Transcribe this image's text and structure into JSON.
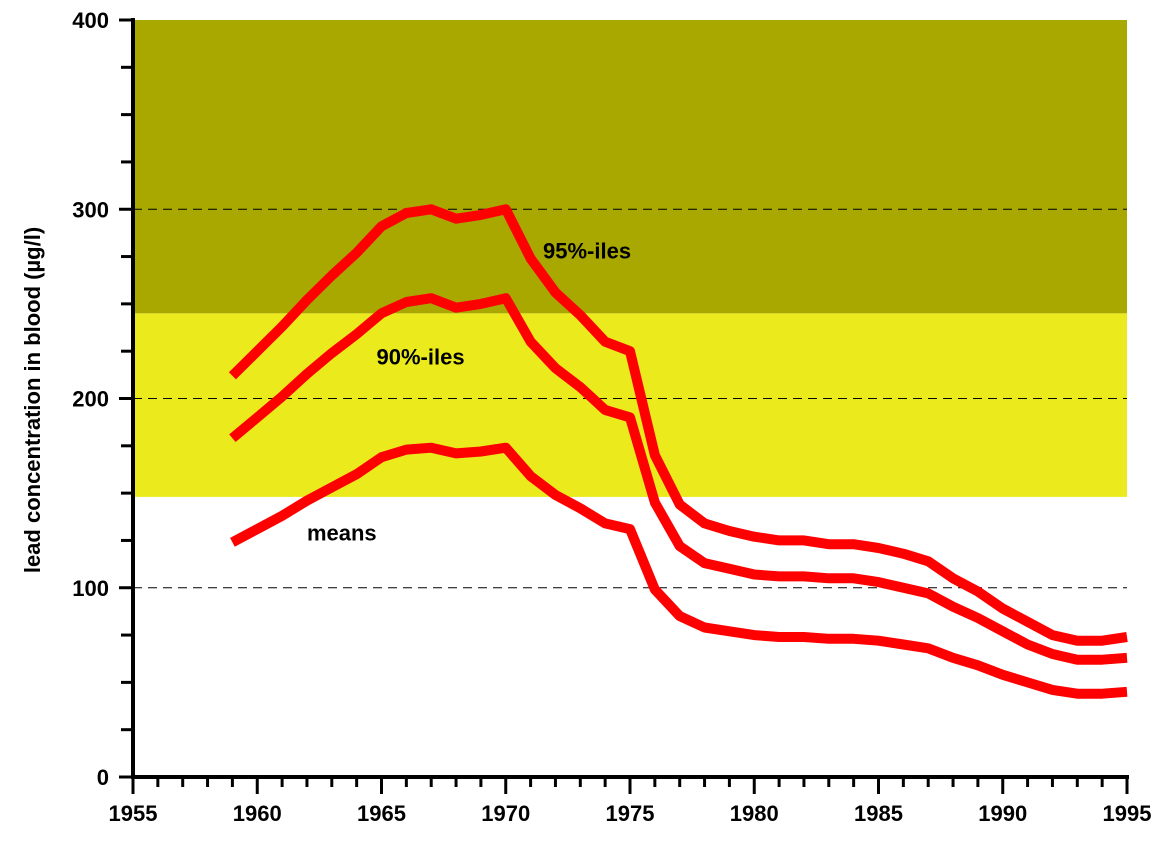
{
  "chart_data": {
    "type": "line",
    "title": "",
    "xlabel": "",
    "ylabel": "lead concentration in blood (µg/l)",
    "xlim": [
      1955,
      1995
    ],
    "ylim": [
      0,
      400
    ],
    "x_ticks": [
      "1955",
      "1960",
      "1965",
      "1970",
      "1975",
      "1980",
      "1985",
      "1990",
      "1995"
    ],
    "y_ticks": [
      "0",
      "100",
      "200",
      "300",
      "400"
    ],
    "grid_lines_dashed_at": [
      100,
      200,
      300
    ],
    "bands": [
      {
        "from": 148,
        "to": 245,
        "color": "#eaea1c"
      },
      {
        "from": 245,
        "to": 400,
        "color": "#a8a800"
      }
    ],
    "line_color": "#ff0000",
    "x": [
      1959,
      1960,
      1961,
      1962,
      1963,
      1964,
      1965,
      1966,
      1967,
      1968,
      1969,
      1970,
      1971,
      1972,
      1973,
      1974,
      1975,
      1976,
      1977,
      1978,
      1979,
      1980,
      1981,
      1982,
      1983,
      1984,
      1985,
      1986,
      1987,
      1988,
      1989,
      1990,
      1991,
      1992,
      1993,
      1994,
      1995
    ],
    "series": [
      {
        "name": "95%-iles",
        "values": [
          212,
          225,
          238,
          252,
          265,
          277,
          291,
          298,
          300,
          295,
          297,
          300,
          274,
          256,
          244,
          230,
          225,
          170,
          144,
          134,
          130,
          127,
          125,
          125,
          123,
          123,
          121,
          118,
          114,
          105,
          98,
          89,
          82,
          75,
          72,
          72,
          74
        ]
      },
      {
        "name": "90%-iles",
        "values": [
          179,
          190,
          201,
          213,
          224,
          234,
          245,
          251,
          253,
          248,
          250,
          253,
          230,
          216,
          206,
          194,
          190,
          145,
          122,
          113,
          110,
          107,
          106,
          106,
          105,
          105,
          103,
          100,
          97,
          90,
          84,
          77,
          70,
          65,
          62,
          62,
          63
        ]
      },
      {
        "name": "means",
        "values": [
          124,
          131,
          138,
          146,
          153,
          160,
          169,
          173,
          174,
          171,
          172,
          174,
          159,
          149,
          142,
          134,
          131,
          99,
          85,
          79,
          77,
          75,
          74,
          74,
          73,
          73,
          72,
          70,
          68,
          63,
          59,
          54,
          50,
          46,
          44,
          44,
          45
        ]
      }
    ],
    "annotations": [
      {
        "text": "95%-iles",
        "x": 1971.5,
        "y": 274
      },
      {
        "text": "90%-iles",
        "x": 1964.8,
        "y": 218
      },
      {
        "text": "means",
        "x": 1962.0,
        "y": 125
      }
    ]
  }
}
